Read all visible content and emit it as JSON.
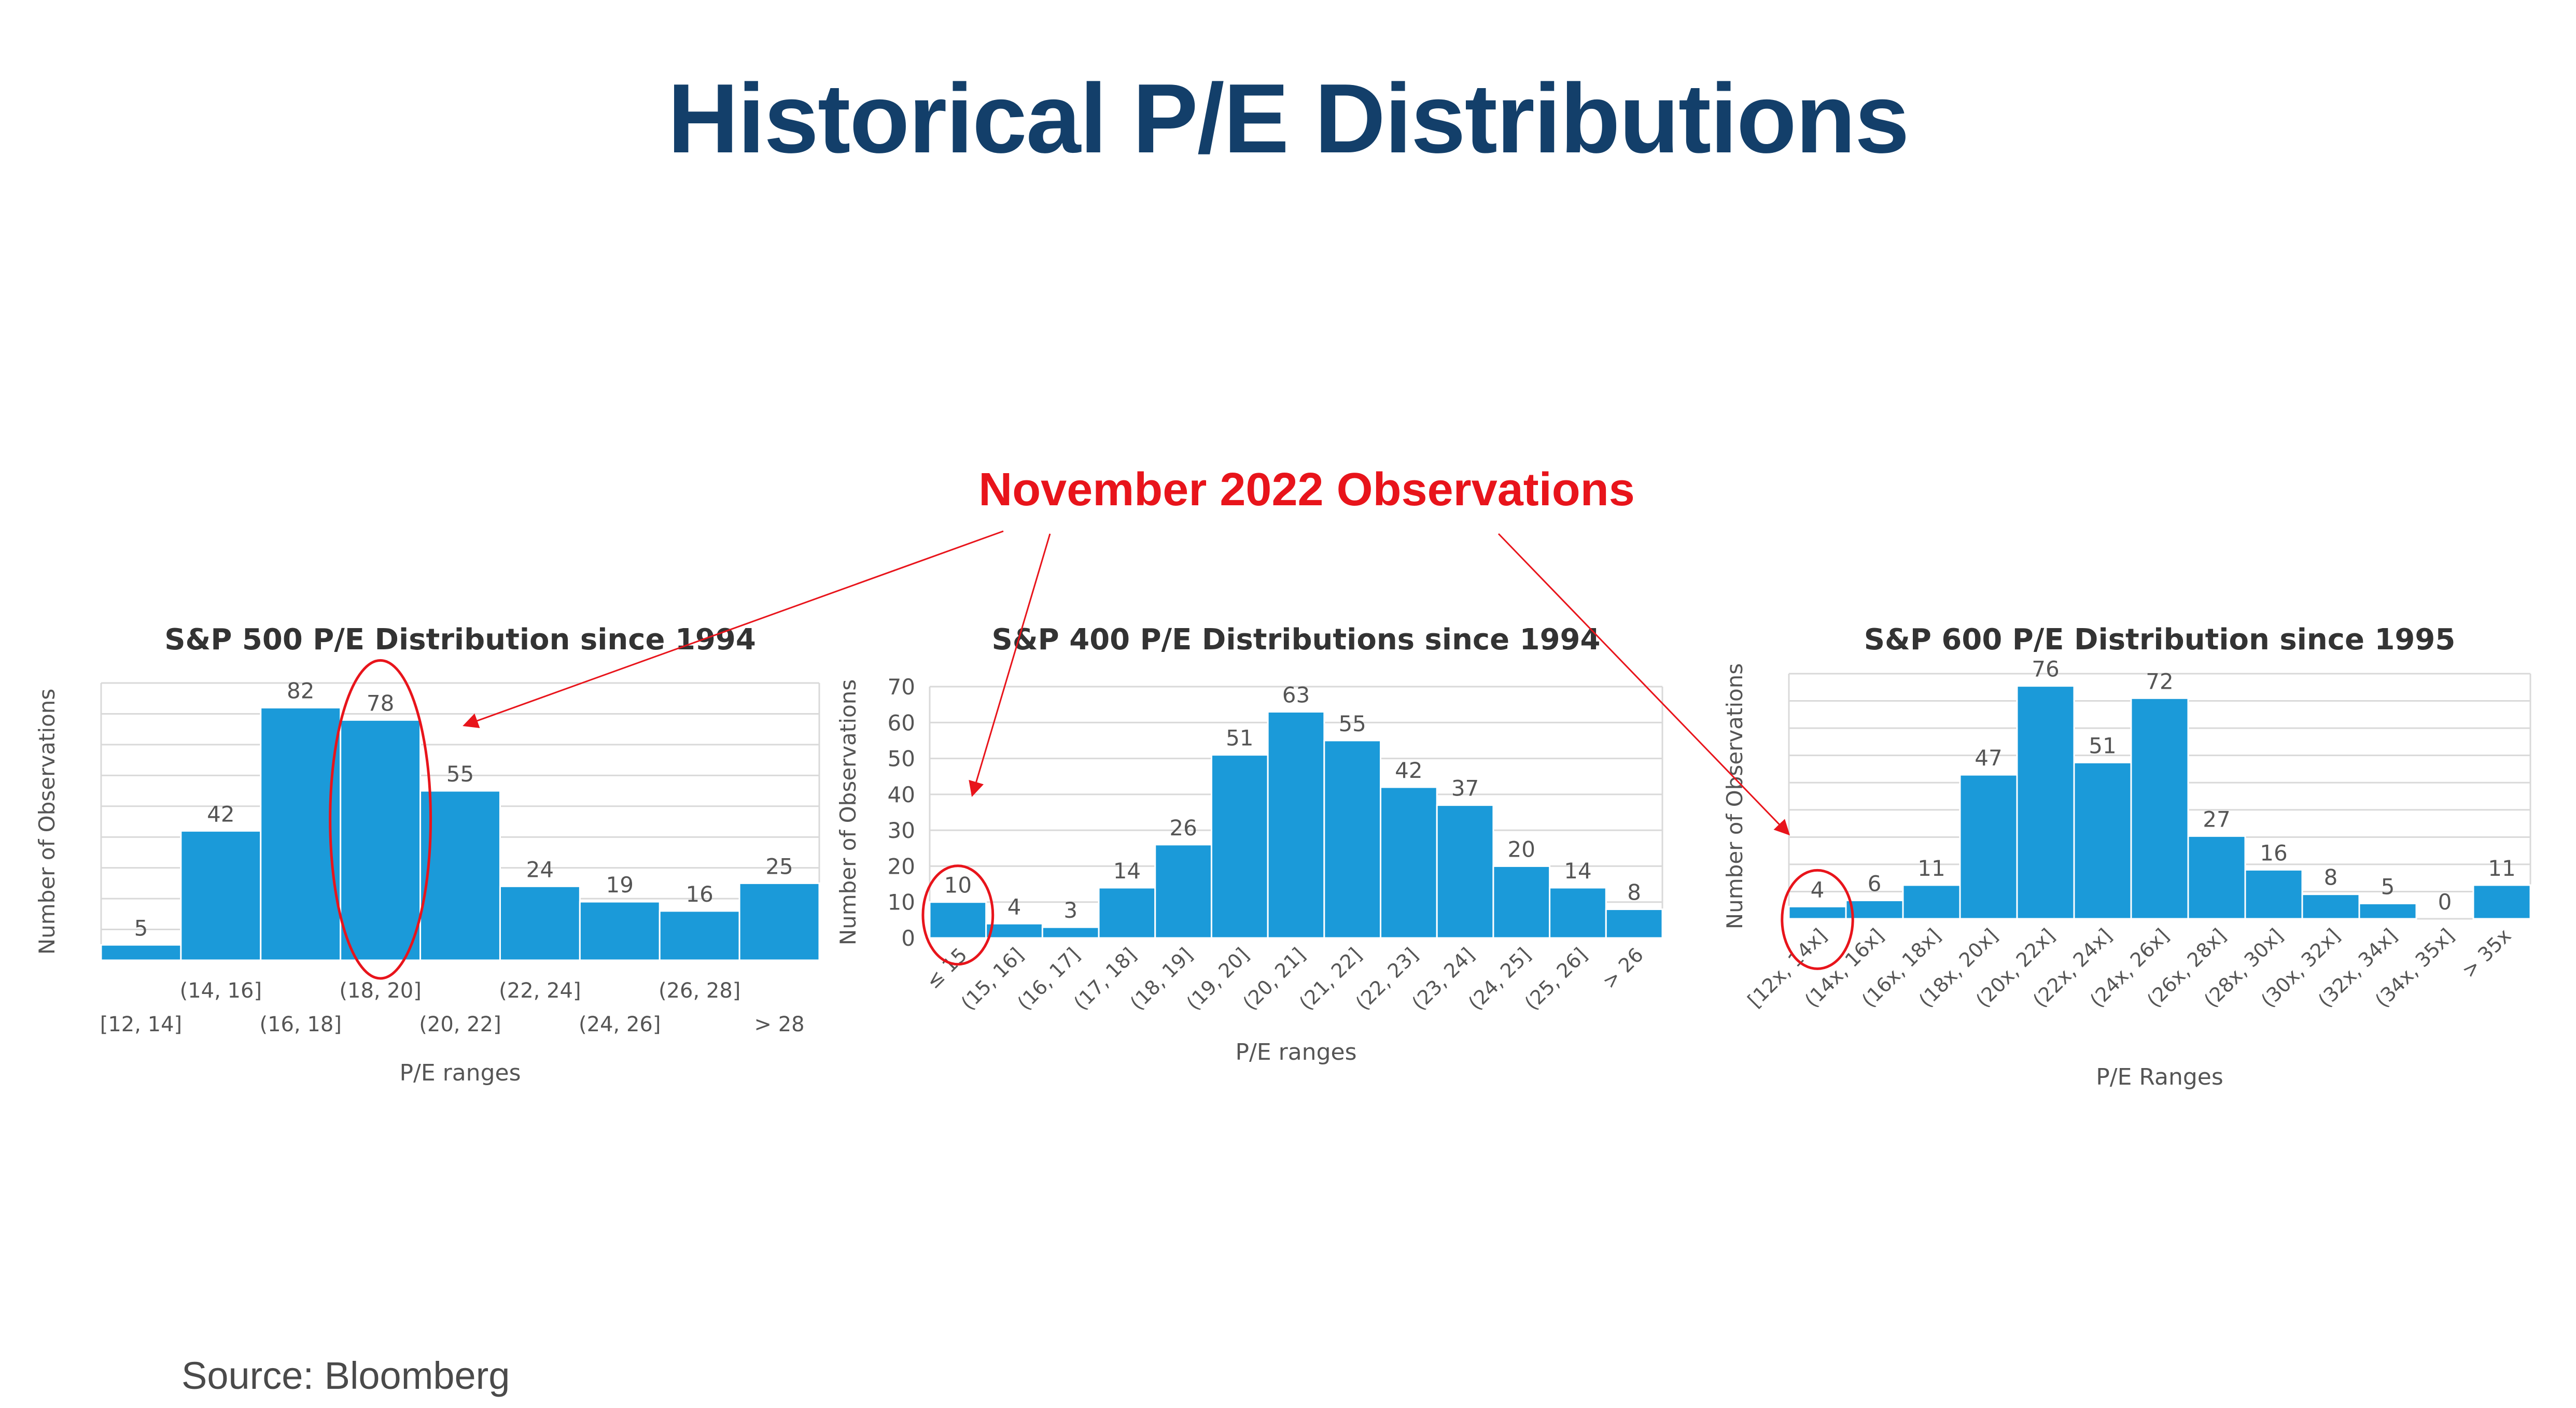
{
  "page": {
    "title": "Historical P/E Distributions",
    "source": "Source: Bloomberg"
  },
  "annotation": {
    "label": "November 2022 Observations",
    "color": "#e8141b"
  },
  "colors": {
    "bar": "#1b9ad9",
    "title": "#133f6a",
    "grid": "#d9d9d9",
    "axis_text": "#555555"
  },
  "chart_data": [
    {
      "type": "bar",
      "title": "S&P 500 P/E Distribution since 1994",
      "xlabel": "P/E ranges",
      "ylabel": "Number of Observations",
      "categories": [
        "[12, 14]",
        "(14, 16]",
        "(16, 18]",
        "(18, 20]",
        "(20, 22]",
        "(22, 24]",
        "(24, 26]",
        "(26, 28]",
        "> 28"
      ],
      "values": [
        5,
        42,
        82,
        78,
        55,
        24,
        19,
        16,
        25
      ],
      "ylim": [
        0,
        90
      ],
      "yticks": [],
      "grid": true,
      "highlight_index": 3
    },
    {
      "type": "bar",
      "title": "S&P 400 P/E Distributions since 1994",
      "xlabel": "P/E ranges",
      "ylabel": "Number of Observations",
      "categories": [
        "≤ 15",
        "(15, 16]",
        "(16, 17]",
        "(17, 18]",
        "(18, 19]",
        "(19, 20]",
        "(20, 21]",
        "(21, 22]",
        "(22, 23]",
        "(23, 24]",
        "(24, 25]",
        "(25, 26]",
        "> 26"
      ],
      "values": [
        10,
        4,
        3,
        14,
        26,
        51,
        63,
        55,
        42,
        37,
        20,
        14,
        8
      ],
      "ylim": [
        0,
        70
      ],
      "yticks": [
        "0",
        "10",
        "20",
        "30",
        "40",
        "50",
        "60",
        "70"
      ],
      "grid": true,
      "highlight_index": 0
    },
    {
      "type": "bar",
      "title": "S&P 600 P/E Distribution since 1995",
      "xlabel": "P/E Ranges",
      "ylabel": "Number of Observations",
      "categories": [
        "[12x, 14x]",
        "(14x, 16x]",
        "(16x, 18x]",
        "(18x, 20x]",
        "(20x, 22x]",
        "(22x, 24x]",
        "(24x, 26x]",
        "(26x, 28x]",
        "(28x, 30x]",
        "(30x, 32x]",
        "(32x, 34x]",
        "(34x, 35x]",
        "> 35x"
      ],
      "values": [
        4,
        6,
        11,
        47,
        76,
        51,
        72,
        27,
        16,
        8,
        5,
        0,
        11
      ],
      "ylim": [
        0,
        80
      ],
      "yticks": [],
      "grid": true,
      "highlight_index": 0
    }
  ]
}
